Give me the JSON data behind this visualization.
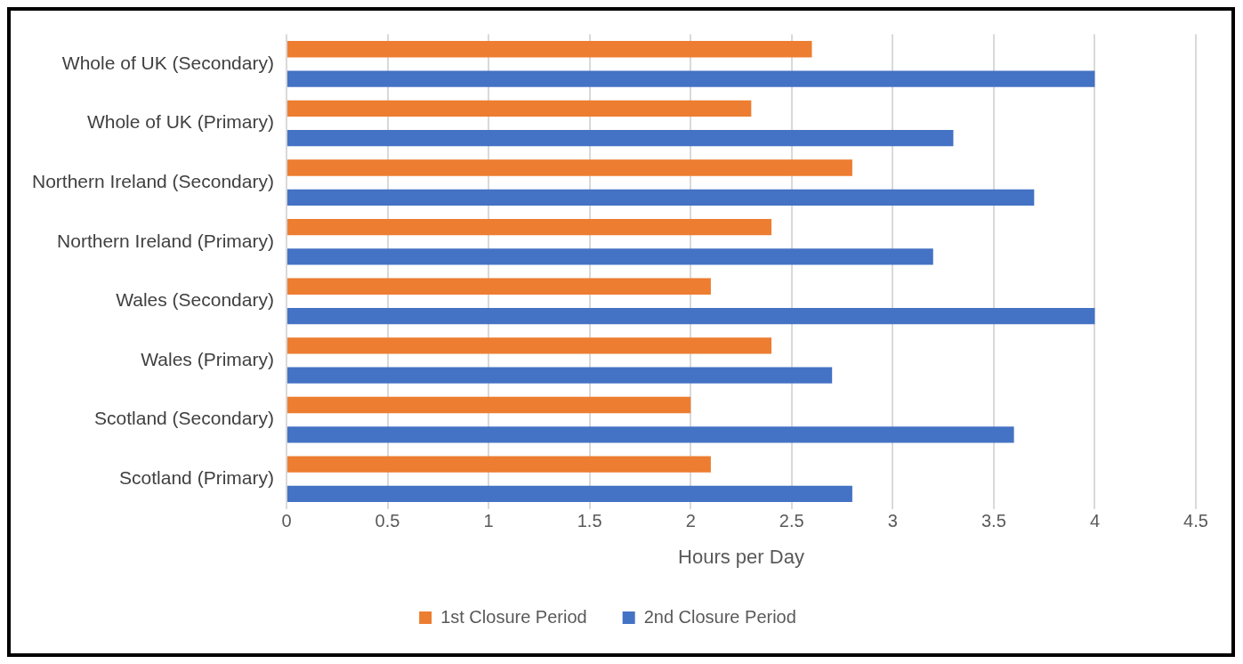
{
  "chart_data": {
    "type": "bar",
    "orientation": "horizontal",
    "xlabel": "Hours per Day",
    "categories": [
      "Whole of UK (Secondary)",
      "Whole of UK (Primary)",
      "Northern Ireland (Secondary)",
      "Northern Ireland (Primary)",
      "Wales (Secondary)",
      "Wales (Primary)",
      "Scotland (Secondary)",
      "Scotland (Primary)"
    ],
    "series": [
      {
        "name": "1st Closure Period",
        "color": "#ed7d31",
        "values": [
          2.6,
          2.3,
          2.8,
          2.4,
          2.1,
          2.4,
          2.0,
          2.1
        ]
      },
      {
        "name": "2nd Closure Period",
        "color": "#4472c4",
        "values": [
          4.0,
          3.3,
          3.7,
          3.2,
          4.0,
          2.7,
          3.6,
          2.8
        ]
      }
    ],
    "xlim": [
      0,
      4.5
    ],
    "xticks": [
      0,
      0.5,
      1,
      1.5,
      2,
      2.5,
      3,
      3.5,
      4,
      4.5
    ],
    "grid": "x",
    "legend": "bottom"
  }
}
